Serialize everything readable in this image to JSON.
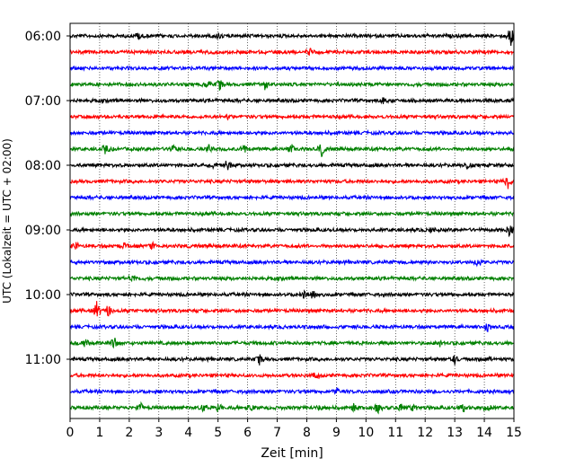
{
  "chart_data": {
    "type": "line",
    "title": "",
    "xlabel": "Zeit  [min]",
    "ylabel": "UTC (Lokalzeit = UTC + 02:00)",
    "xlim": [
      0,
      15
    ],
    "x_ticks": [
      "0",
      "1",
      "2",
      "3",
      "4",
      "5",
      "6",
      "7",
      "8",
      "9",
      "10",
      "11",
      "12",
      "13",
      "14",
      "15"
    ],
    "x_grid": true,
    "y_tick_labels": [
      "06:00",
      "07:00",
      "08:00",
      "09:00",
      "10:00",
      "11:00"
    ],
    "trace_colors": [
      "#000000",
      "#ff0000",
      "#0000ff",
      "#008000"
    ],
    "series": [
      {
        "start": "06:00",
        "color": "#000000",
        "events": [
          {
            "t": 2.3,
            "amp": 0.3
          },
          {
            "t": 5.0,
            "amp": 0.25
          },
          {
            "t": 14.9,
            "amp": 1.0
          }
        ]
      },
      {
        "start": "06:15",
        "color": "#ff0000",
        "events": [
          {
            "t": 8.1,
            "amp": 0.3
          }
        ]
      },
      {
        "start": "06:30",
        "color": "#0000ff",
        "events": []
      },
      {
        "start": "06:45",
        "color": "#008000",
        "events": [
          {
            "t": 4.6,
            "amp": 0.35
          },
          {
            "t": 5.05,
            "amp": 0.55
          },
          {
            "t": 6.6,
            "amp": 0.4
          }
        ]
      },
      {
        "start": "07:00",
        "color": "#000000",
        "events": [
          {
            "t": 10.6,
            "amp": 0.3
          }
        ]
      },
      {
        "start": "07:15",
        "color": "#ff0000",
        "events": [
          {
            "t": 5.3,
            "amp": 0.2
          }
        ]
      },
      {
        "start": "07:30",
        "color": "#0000ff",
        "events": []
      },
      {
        "start": "07:45",
        "color": "#008000",
        "events": [
          {
            "t": 1.2,
            "amp": 0.4
          },
          {
            "t": 3.5,
            "amp": 0.3
          },
          {
            "t": 4.7,
            "amp": 0.35
          },
          {
            "t": 5.9,
            "amp": 0.4
          },
          {
            "t": 7.5,
            "amp": 0.35
          },
          {
            "t": 8.5,
            "amp": 0.6
          }
        ]
      },
      {
        "start": "08:00",
        "color": "#000000",
        "events": [
          {
            "t": 4.9,
            "amp": 0.35
          },
          {
            "t": 5.3,
            "amp": 0.55
          },
          {
            "t": 13.4,
            "amp": 0.3
          }
        ]
      },
      {
        "start": "08:15",
        "color": "#ff0000",
        "events": [
          {
            "t": 14.8,
            "amp": 0.5
          }
        ]
      },
      {
        "start": "08:30",
        "color": "#0000ff",
        "events": []
      },
      {
        "start": "08:45",
        "color": "#008000",
        "events": []
      },
      {
        "start": "09:00",
        "color": "#000000",
        "events": [
          {
            "t": 12.2,
            "amp": 0.25
          },
          {
            "t": 14.85,
            "amp": 0.55
          }
        ]
      },
      {
        "start": "09:15",
        "color": "#ff0000",
        "events": [
          {
            "t": 0.2,
            "amp": 0.35
          },
          {
            "t": 1.8,
            "amp": 0.25
          },
          {
            "t": 2.8,
            "amp": 0.25
          }
        ]
      },
      {
        "start": "09:30",
        "color": "#0000ff",
        "events": [
          {
            "t": 13.8,
            "amp": 0.5
          }
        ]
      },
      {
        "start": "09:45",
        "color": "#008000",
        "events": [
          {
            "t": 2.1,
            "amp": 0.45
          }
        ]
      },
      {
        "start": "10:00",
        "color": "#000000",
        "events": [
          {
            "t": 7.9,
            "amp": 0.3
          },
          {
            "t": 8.2,
            "amp": 0.5
          }
        ]
      },
      {
        "start": "10:15",
        "color": "#ff0000",
        "events": [
          {
            "t": 0.9,
            "amp": 0.9
          },
          {
            "t": 1.3,
            "amp": 0.5
          }
        ]
      },
      {
        "start": "10:30",
        "color": "#0000ff",
        "events": [
          {
            "t": 14.1,
            "amp": 0.55
          }
        ]
      },
      {
        "start": "10:45",
        "color": "#008000",
        "events": [
          {
            "t": 0.5,
            "amp": 0.4
          },
          {
            "t": 1.5,
            "amp": 0.5
          },
          {
            "t": 12.5,
            "amp": 0.25
          }
        ]
      },
      {
        "start": "11:00",
        "color": "#000000",
        "events": [
          {
            "t": 6.4,
            "amp": 0.45
          },
          {
            "t": 13.0,
            "amp": 0.3
          },
          {
            "t": 14.2,
            "amp": 0.25
          }
        ]
      },
      {
        "start": "11:15",
        "color": "#ff0000",
        "events": [
          {
            "t": 8.3,
            "amp": 0.25
          }
        ]
      },
      {
        "start": "11:30",
        "color": "#0000ff",
        "events": [
          {
            "t": 9.0,
            "amp": 0.35
          }
        ]
      },
      {
        "start": "11:45",
        "color": "#008000",
        "events": [
          {
            "t": 2.4,
            "amp": 0.35
          },
          {
            "t": 4.5,
            "amp": 0.4
          },
          {
            "t": 5.0,
            "amp": 0.55
          },
          {
            "t": 6.1,
            "amp": 0.4
          },
          {
            "t": 8.5,
            "amp": 0.45
          },
          {
            "t": 9.6,
            "amp": 0.35
          },
          {
            "t": 10.4,
            "amp": 0.4
          },
          {
            "t": 11.2,
            "amp": 0.35
          },
          {
            "t": 11.6,
            "amp": 0.3
          },
          {
            "t": 13.3,
            "amp": 0.35
          },
          {
            "t": 14.1,
            "amp": 0.3
          }
        ]
      }
    ]
  }
}
